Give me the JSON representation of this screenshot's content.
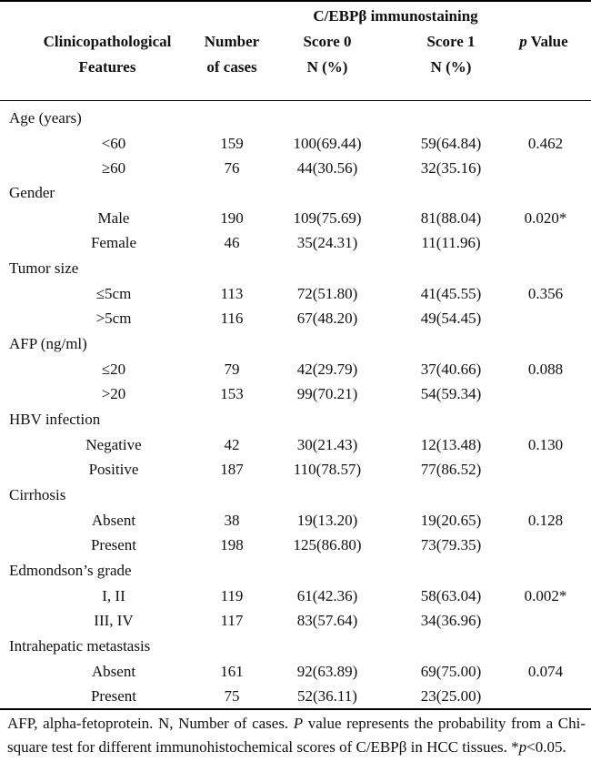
{
  "header": {
    "group_title": "C/EBPβ immunostaining",
    "col_features_line1": "Clinicopathological",
    "col_features_line2": "Features",
    "col_cases_line1": "Number",
    "col_cases_line2": "of cases",
    "col_score0_line1": "Score 0",
    "col_score0_line2": "N (%)",
    "col_score1_line1": "Score 1",
    "col_score1_line2": "N (%)",
    "col_p_italic": "p",
    "col_p_text": " Value"
  },
  "groups": [
    {
      "name": "Age (years)",
      "p": "0.462",
      "rows": [
        {
          "label": "<60",
          "n": "159",
          "s0": "100(69.44)",
          "s1": "59(64.84)"
        },
        {
          "label": "≥60",
          "n": "76",
          "s0": "44(30.56)",
          "s1": "32(35.16)"
        }
      ]
    },
    {
      "name": "Gender",
      "p": "0.020*",
      "rows": [
        {
          "label": "Male",
          "n": "190",
          "s0": "109(75.69)",
          "s1": "81(88.04)"
        },
        {
          "label": "Female",
          "n": "46",
          "s0": "35(24.31)",
          "s1": "11(11.96)"
        }
      ]
    },
    {
      "name": "Tumor size",
      "p": "0.356",
      "rows": [
        {
          "label": "≤5cm",
          "n": "113",
          "s0": "72(51.80)",
          "s1": "41(45.55)"
        },
        {
          "label": ">5cm",
          "n": "116",
          "s0": "67(48.20)",
          "s1": "49(54.45)"
        }
      ]
    },
    {
      "name": "AFP (ng/ml)",
      "p": "0.088",
      "rows": [
        {
          "label": "≤20",
          "n": "79",
          "s0": "42(29.79)",
          "s1": "37(40.66)"
        },
        {
          "label": ">20",
          "n": "153",
          "s0": "99(70.21)",
          "s1": "54(59.34)"
        }
      ]
    },
    {
      "name": "HBV infection",
      "p": "0.130",
      "rows": [
        {
          "label": "Negative",
          "n": "42",
          "s0": "30(21.43)",
          "s1": "12(13.48)"
        },
        {
          "label": "Positive",
          "n": "187",
          "s0": "110(78.57)",
          "s1": "77(86.52)"
        }
      ]
    },
    {
      "name": "Cirrhosis",
      "p": "0.128",
      "rows": [
        {
          "label": "Absent",
          "n": "38",
          "s0": "19(13.20)",
          "s1": "19(20.65)"
        },
        {
          "label": "Present",
          "n": "198",
          "s0": "125(86.80)",
          "s1": "73(79.35)"
        }
      ]
    },
    {
      "name": "Edmondson’s grade",
      "p": "0.002*",
      "rows": [
        {
          "label": "I, II",
          "n": "119",
          "s0": "61(42.36)",
          "s1": "58(63.04)"
        },
        {
          "label": "III, IV",
          "n": "117",
          "s0": "83(57.64)",
          "s1": "34(36.96)"
        }
      ]
    },
    {
      "name": "Intrahepatic metastasis",
      "p": "0.074",
      "rows": [
        {
          "label": "Absent",
          "n": "161",
          "s0": "92(63.89)",
          "s1": "69(75.00)"
        },
        {
          "label": "Present",
          "n": "75",
          "s0": "52(36.11)",
          "s1": "23(25.00)"
        }
      ]
    }
  ],
  "footnote": {
    "part1": "AFP, alpha-fetoprotein. N, Number of cases. ",
    "p_italic": "P",
    "part2": " value represents the probability from a Chi-square test for different immunohistochemical scores of C/EBPβ in HCC tissues. *",
    "p_small_italic": "p",
    "part3": "<0.05."
  }
}
